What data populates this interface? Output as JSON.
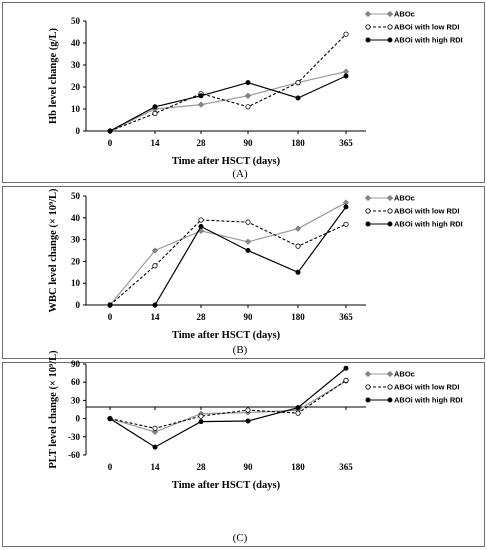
{
  "chart_data": [
    {
      "type": "line",
      "panel_label": "(A)",
      "ylabel": "Hb level change (g/L)",
      "xlabel": "Time after HSCT (days)",
      "categories": [
        "0",
        "14",
        "28",
        "90",
        "180",
        "365"
      ],
      "ylim": [
        0,
        50
      ],
      "yticks": [
        "0",
        "10",
        "20",
        "30",
        "40",
        "50"
      ],
      "legend_position": "top-right",
      "series": [
        {
          "name": "ABOc",
          "values": [
            0,
            10,
            12,
            16,
            22,
            27
          ],
          "color": "#9a9a9a",
          "dash": "solid",
          "marker": "diamond"
        },
        {
          "name": "ABOi with  low RDI",
          "values": [
            0,
            8,
            17,
            11,
            22,
            44
          ],
          "color": "#000000",
          "dash": "dashed",
          "marker": "open-circle"
        },
        {
          "name": "ABOi with high RDI",
          "values": [
            0,
            11,
            16,
            22,
            15,
            25
          ],
          "color": "#000000",
          "dash": "solid",
          "marker": "filled-circle"
        }
      ]
    },
    {
      "type": "line",
      "panel_label": "(B)",
      "ylabel": "WBC level change (× 10⁹/L)",
      "xlabel": "Time after HSCT (days)",
      "categories": [
        "0",
        "14",
        "28",
        "90",
        "180",
        "365"
      ],
      "ylim": [
        0,
        50
      ],
      "yticks": [
        "0",
        "10",
        "20",
        "30",
        "40",
        "50"
      ],
      "legend_position": "top-right",
      "series": [
        {
          "name": "ABOc",
          "values": [
            0,
            25,
            34,
            29,
            35,
            47
          ],
          "color": "#9a9a9a",
          "dash": "solid",
          "marker": "diamond"
        },
        {
          "name": "ABOi with  low RDI",
          "values": [
            0,
            18,
            39,
            38,
            27,
            37
          ],
          "color": "#000000",
          "dash": "dashed",
          "marker": "open-circle"
        },
        {
          "name": "ABOi with high RDI",
          "values": [
            0,
            0,
            36,
            25,
            15,
            45
          ],
          "color": "#000000",
          "dash": "solid",
          "marker": "filled-circle"
        }
      ]
    },
    {
      "type": "line",
      "panel_label": "(C)",
      "ylabel": "PLT level change (× 10⁹/L)",
      "xlabel": "Time after HSCT (days)",
      "categories": [
        "0",
        "14",
        "28",
        "90",
        "180",
        "365"
      ],
      "ylim": [
        -60,
        90
      ],
      "yticks": [
        "-60",
        "-30",
        "0",
        "30",
        "60",
        "90"
      ],
      "legend_position": "top-right",
      "series": [
        {
          "name": "ABOc",
          "values": [
            0,
            -22,
            8,
            10,
            14,
            62
          ],
          "color": "#9a9a9a",
          "dash": "solid",
          "marker": "diamond"
        },
        {
          "name": "ABOi with low RDI",
          "values": [
            0,
            -16,
            4,
            14,
            9,
            63
          ],
          "color": "#000000",
          "dash": "dashed",
          "marker": "open-circle"
        },
        {
          "name": "ABOi with high RDI",
          "values": [
            0,
            -47,
            -5,
            -4,
            18,
            83
          ],
          "color": "#000000",
          "dash": "solid",
          "marker": "filled-circle"
        }
      ]
    }
  ]
}
